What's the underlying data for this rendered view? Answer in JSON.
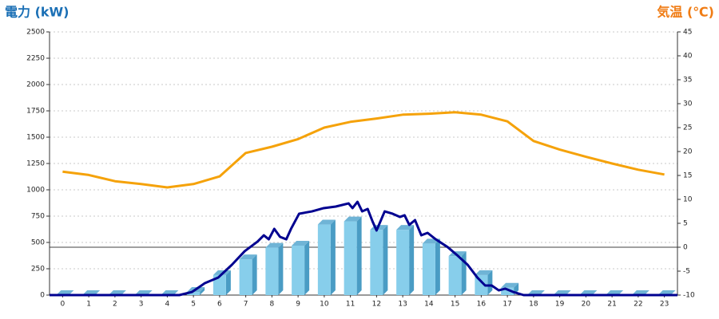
{
  "chart_data": {
    "type": "combo",
    "title": "電力 (kW)",
    "y2_title": "気温 (℃)",
    "categories": [
      "0",
      "1",
      "2",
      "3",
      "4",
      "5",
      "6",
      "7",
      "8",
      "9",
      "10",
      "11",
      "12",
      "13",
      "14",
      "15",
      "16",
      "17",
      "18",
      "19",
      "20",
      "21",
      "22",
      "23"
    ],
    "xlim": [
      -0.5,
      23.5
    ],
    "ylim": [
      0,
      2500
    ],
    "yticks": [
      0,
      250,
      500,
      750,
      1000,
      1250,
      1500,
      1750,
      2000,
      2250,
      2500
    ],
    "y2lim": [
      -10,
      45
    ],
    "y2ticks": [
      -10,
      -5,
      0,
      5,
      10,
      15,
      20,
      25,
      30,
      35,
      40,
      45
    ],
    "grid": true,
    "series": [
      {
        "type": "bar",
        "color": "#87ceeb",
        "values": [
          0,
          0,
          0,
          0,
          0,
          30,
          190,
          340,
          450,
          470,
          670,
          700,
          620,
          620,
          490,
          370,
          190,
          70,
          0,
          0,
          0,
          0,
          0,
          0
        ]
      },
      {
        "type": "line",
        "color": "#000090",
        "x": [
          -0.5,
          4.46,
          4.95,
          5.44,
          5.95,
          6.47,
          6.96,
          7.45,
          7.69,
          7.88,
          8.09,
          8.31,
          8.55,
          8.73,
          9.04,
          9.53,
          9.98,
          10.44,
          10.93,
          11.08,
          11.27,
          11.45,
          11.66,
          11.85,
          12.0,
          12.31,
          12.61,
          12.89,
          13.07,
          13.25,
          13.47,
          13.71,
          13.95,
          14.26,
          14.72,
          15.08,
          15.48,
          15.85,
          16.15,
          16.4,
          16.67,
          16.92,
          17.22,
          17.62,
          23.5
        ],
        "values": [
          0,
          0,
          30,
          114,
          167,
          288,
          417,
          508,
          568,
          530,
          629,
          553,
          530,
          629,
          773,
          795,
          826,
          841,
          871,
          826,
          886,
          795,
          818,
          697,
          614,
          795,
          773,
          742,
          758,
          667,
          712,
          568,
          591,
          530,
          455,
          379,
          288,
          167,
          91,
          91,
          45,
          61,
          30,
          0,
          0
        ]
      },
      {
        "type": "line",
        "axis": "y2",
        "color": "#f5a20a",
        "values": [
          15.8,
          15.1,
          13.8,
          13.2,
          12.5,
          13.2,
          14.8,
          19.7,
          21,
          22.6,
          25,
          26.2,
          26.9,
          27.7,
          27.9,
          28.2,
          27.7,
          26.3,
          22.2,
          20.4,
          18.9,
          17.5,
          16.2,
          15.2
        ]
      }
    ]
  }
}
